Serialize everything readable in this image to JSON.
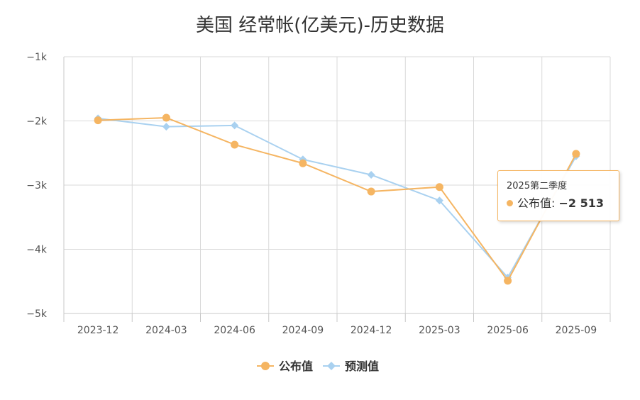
{
  "colors": {
    "published": "#f5b562",
    "forecast": "#a9d1f0",
    "grid": "#d9d9d9",
    "axis": "#c8c8c8"
  },
  "chart_data": {
    "type": "line",
    "title": "美国 经常帐(亿美元)-历史数据",
    "categories": [
      "2023-12",
      "2024-03",
      "2024-06",
      "2024-09",
      "2024-12",
      "2025-03",
      "2025-06",
      "2025-09"
    ],
    "y_ticks": [
      "−1k",
      "−2k",
      "−3k",
      "−4k",
      "−5k"
    ],
    "y_tick_values": [
      -1000,
      -2000,
      -3000,
      -4000,
      -5000
    ],
    "ylim": [
      -5000,
      -1000
    ],
    "grid": true,
    "legend_position": "bottom",
    "series": [
      {
        "name": "公布值",
        "marker": "circle",
        "values": [
          -1990,
          -1950,
          -2370,
          -2660,
          -3100,
          -3030,
          -4490,
          -2513
        ]
      },
      {
        "name": "预测值",
        "marker": "diamond",
        "values": [
          -1960,
          -2090,
          -2070,
          -2600,
          -2840,
          -3240,
          -4440,
          -2550
        ]
      }
    ],
    "tooltip": {
      "title": "2025第二季度",
      "series_label": "公布值:",
      "value": "−2 513"
    }
  }
}
